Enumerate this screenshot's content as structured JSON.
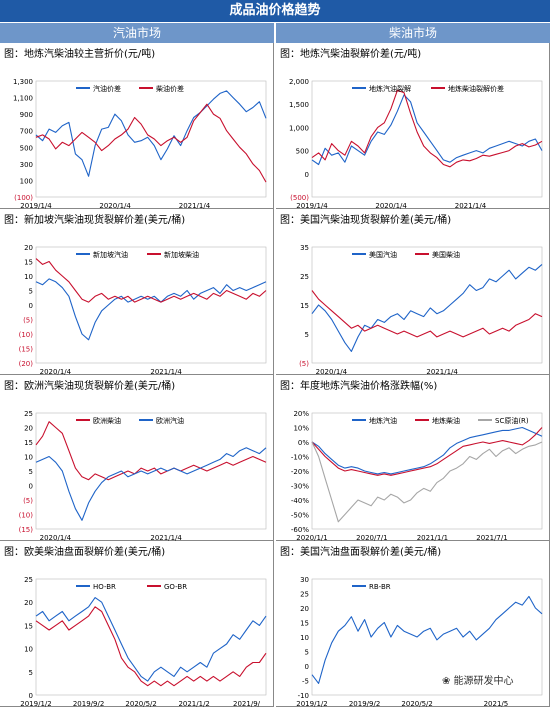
{
  "banner": "成品油价格趋势",
  "col_left": "汽油市场",
  "col_right": "柴油市场",
  "watermark": "能源研发中心",
  "chart_data": [
    {
      "type": "line",
      "title": "图：地炼汽柴油较主营折价(元/吨)",
      "y_ticks": [
        "1,300",
        "1,100",
        "900",
        "700",
        "500",
        "300",
        "100",
        "(100)"
      ],
      "ylim": [
        -100,
        1300
      ],
      "x_ticks": [
        "2019/1/4",
        "2020/1/4",
        "2021/1/4"
      ],
      "x_domain": [
        "2019-01-04",
        "2021-11-30"
      ],
      "series": [
        {
          "name": "汽油价差",
          "color": "#1f64c8",
          "values": [
            650,
            580,
            720,
            680,
            760,
            800,
            420,
            350,
            150,
            520,
            720,
            740,
            900,
            820,
            650,
            560,
            580,
            620,
            520,
            350,
            480,
            640,
            520,
            700,
            860,
            920,
            1000,
            1080,
            1150,
            1180,
            1100,
            1020,
            930,
            980,
            1050,
            850
          ]
        },
        {
          "name": "柴油价差",
          "color": "#c8102e",
          "values": [
            620,
            650,
            600,
            480,
            560,
            520,
            600,
            680,
            620,
            560,
            460,
            520,
            600,
            650,
            720,
            860,
            780,
            650,
            600,
            520,
            580,
            620,
            560,
            620,
            820,
            920,
            1020,
            900,
            850,
            700,
            600,
            500,
            420,
            300,
            220,
            80
          ]
        }
      ]
    },
    {
      "type": "line",
      "title": "图：地炼汽柴油裂解价差(元/吨)",
      "y_ticks": [
        "2,000",
        "1,500",
        "1,000",
        "500",
        "0",
        "(500)"
      ],
      "ylim": [
        -500,
        2000
      ],
      "x_ticks": [
        "2019/1/4",
        "2020/1/4",
        "2021/1/4"
      ],
      "x_domain": [
        "2019-01-04",
        "2021-11-30"
      ],
      "series": [
        {
          "name": "地炼汽油裂解",
          "color": "#1f64c8",
          "values": [
            300,
            200,
            550,
            400,
            450,
            250,
            600,
            500,
            400,
            700,
            900,
            850,
            1050,
            1350,
            1700,
            1550,
            1100,
            900,
            700,
            500,
            300,
            250,
            350,
            400,
            450,
            500,
            450,
            550,
            600,
            650,
            700,
            650,
            600,
            700,
            750,
            500
          ]
        },
        {
          "name": "地炼柴油裂解价差",
          "color": "#c8102e",
          "values": [
            350,
            450,
            300,
            650,
            500,
            400,
            700,
            600,
            450,
            800,
            1000,
            1100,
            1400,
            1800,
            1750,
            1300,
            900,
            600,
            450,
            350,
            200,
            150,
            250,
            300,
            280,
            330,
            400,
            380,
            420,
            460,
            500,
            600,
            650,
            580,
            620,
            700
          ]
        }
      ]
    },
    {
      "type": "line",
      "title": "图：新加坡汽柴油现货裂解价差(美元/桶)",
      "y_ticks": [
        "20",
        "15",
        "10",
        "5",
        "0",
        "(5)",
        "(10)",
        "(15)",
        "(20)"
      ],
      "ylim": [
        -20,
        20
      ],
      "x_ticks": [
        "2020/1/4",
        "2021/1/4"
      ],
      "x_domain": [
        "2019-11-01",
        "2021-11-30"
      ],
      "series": [
        {
          "name": "新加坡汽油",
          "color": "#1f64c8",
          "values": [
            8,
            7,
            9,
            8,
            6,
            3,
            -4,
            -10,
            -12,
            -6,
            -2,
            0,
            2,
            3,
            1,
            2,
            3,
            2,
            3,
            1,
            3,
            4,
            3,
            5,
            2,
            4,
            5,
            6,
            4,
            7,
            5,
            6,
            5,
            6,
            7,
            8
          ]
        },
        {
          "name": "新加坡柴油",
          "color": "#c8102e",
          "values": [
            16,
            14,
            15,
            12,
            10,
            8,
            5,
            2,
            1,
            3,
            4,
            2,
            3,
            2,
            3,
            1,
            2,
            3,
            2,
            1,
            2,
            3,
            2,
            3,
            4,
            3,
            2,
            4,
            3,
            5,
            4,
            3,
            2,
            4,
            3,
            5
          ]
        }
      ]
    },
    {
      "type": "line",
      "title": "图：美国汽柴油现货裂解价差(美元/桶)",
      "y_ticks": [
        "35",
        "25",
        "15",
        "5",
        "(5)"
      ],
      "ylim": [
        -5,
        35
      ],
      "x_ticks": [
        "2020/1/4",
        "2021/1/4"
      ],
      "x_domain": [
        "2019-11-01",
        "2021-11-30"
      ],
      "series": [
        {
          "name": "美国汽油",
          "color": "#1f64c8",
          "values": [
            12,
            15,
            13,
            10,
            6,
            2,
            -1,
            4,
            8,
            7,
            10,
            9,
            11,
            12,
            10,
            13,
            12,
            11,
            14,
            12,
            13,
            15,
            17,
            19,
            22,
            20,
            21,
            24,
            23,
            25,
            27,
            24,
            26,
            28,
            27,
            29
          ]
        },
        {
          "name": "美国柴油",
          "color": "#c8102e",
          "values": [
            20,
            17,
            15,
            13,
            11,
            9,
            7,
            8,
            6,
            7,
            8,
            7,
            6,
            5,
            6,
            5,
            4,
            5,
            6,
            4,
            5,
            6,
            5,
            4,
            5,
            6,
            7,
            5,
            6,
            7,
            6,
            8,
            9,
            10,
            12,
            11
          ]
        }
      ]
    },
    {
      "type": "line",
      "title": "图：欧洲汽柴油现货裂解价差(美元/桶)",
      "y_ticks": [
        "25",
        "20",
        "15",
        "10",
        "5",
        "0",
        "(5)",
        "(10)",
        "(15)"
      ],
      "ylim": [
        -15,
        25
      ],
      "x_ticks": [
        "2020/1/4",
        "2021/1/4"
      ],
      "x_domain": [
        "2019-11-01",
        "2021-11-30"
      ],
      "series": [
        {
          "name": "欧洲柴油",
          "color": "#c8102e",
          "values": [
            14,
            17,
            22,
            20,
            18,
            12,
            6,
            3,
            2,
            4,
            3,
            2,
            3,
            4,
            5,
            4,
            6,
            5,
            6,
            4,
            5,
            6,
            5,
            6,
            7,
            6,
            5,
            6,
            7,
            8,
            7,
            8,
            9,
            10,
            9,
            8
          ]
        },
        {
          "name": "欧洲汽油",
          "color": "#1f64c8",
          "values": [
            8,
            9,
            10,
            8,
            5,
            -2,
            -8,
            -12,
            -6,
            -2,
            1,
            3,
            4,
            5,
            3,
            4,
            5,
            4,
            5,
            6,
            5,
            6,
            5,
            4,
            5,
            6,
            7,
            8,
            9,
            11,
            10,
            12,
            13,
            12,
            11,
            13
          ]
        }
      ]
    },
    {
      "type": "line",
      "title": "图：年度地炼汽柴油价格涨跌幅(%)",
      "y_ticks": [
        "20%",
        "10%",
        "0%",
        "-10%",
        "-20%",
        "-30%",
        "-40%",
        "-50%",
        "-60%"
      ],
      "ylim": [
        -60,
        20
      ],
      "x_ticks": [
        "2020/1/1",
        "2020/7/1",
        "2021/1/1",
        "2021/7/1"
      ],
      "x_domain": [
        "2020-01-01",
        "2021-11-30"
      ],
      "series": [
        {
          "name": "地炼汽油",
          "color": "#1f64c8",
          "values": [
            0,
            -3,
            -8,
            -12,
            -16,
            -18,
            -17,
            -18,
            -20,
            -21,
            -22,
            -21,
            -22,
            -21,
            -20,
            -19,
            -18,
            -17,
            -15,
            -12,
            -9,
            -4,
            -1,
            1,
            3,
            4,
            5,
            6,
            7,
            8,
            8,
            9,
            10,
            8,
            6,
            4
          ]
        },
        {
          "name": "地炼柴油",
          "color": "#c8102e",
          "values": [
            0,
            -5,
            -10,
            -14,
            -18,
            -20,
            -19,
            -20,
            -21,
            -22,
            -23,
            -22,
            -23,
            -22,
            -21,
            -20,
            -19,
            -18,
            -17,
            -15,
            -12,
            -9,
            -6,
            -3,
            -2,
            -1,
            0,
            -1,
            0,
            1,
            0,
            -1,
            -2,
            1,
            5,
            10
          ]
        },
        {
          "name": "SC原油(R)",
          "color": "#a6a6a6",
          "values": [
            0,
            -10,
            -25,
            -40,
            -55,
            -50,
            -45,
            -40,
            -42,
            -44,
            -38,
            -40,
            -36,
            -38,
            -42,
            -40,
            -35,
            -32,
            -34,
            -28,
            -25,
            -20,
            -18,
            -15,
            -10,
            -12,
            -8,
            -5,
            -10,
            -6,
            -4,
            -8,
            -5,
            -3,
            -2,
            0
          ]
        }
      ]
    },
    {
      "type": "line",
      "title": "图：欧美柴油盘面裂解价差(美元/桶)",
      "y_ticks": [
        "25",
        "20",
        "15",
        "10",
        "5",
        "0"
      ],
      "ylim": [
        0,
        25
      ],
      "x_ticks": [
        "2019/1/2",
        "2019/9/2",
        "2020/5/2",
        "2021/1/2",
        "2021/9/"
      ],
      "x_domain": [
        "2019-01-02",
        "2021-11-30"
      ],
      "series": [
        {
          "name": "HO-BR",
          "color": "#1f64c8",
          "values": [
            17,
            18,
            16,
            17,
            18,
            16,
            17,
            18,
            19,
            21,
            20,
            17,
            14,
            11,
            8,
            6,
            4,
            3,
            5,
            6,
            5,
            4,
            6,
            5,
            6,
            7,
            6,
            9,
            10,
            11,
            13,
            12,
            14,
            16,
            15,
            17
          ]
        },
        {
          "name": "GO-BR",
          "color": "#c8102e",
          "values": [
            16,
            15,
            14,
            15,
            16,
            14,
            15,
            16,
            17,
            19,
            18,
            15,
            12,
            8,
            6,
            5,
            3,
            2,
            3,
            2,
            3,
            2,
            3,
            4,
            3,
            4,
            3,
            4,
            3,
            4,
            5,
            4,
            6,
            7,
            7,
            9
          ]
        }
      ]
    },
    {
      "type": "line",
      "title": "图：美国汽油盘面裂解价差(美元/桶)",
      "y_ticks": [
        "30",
        "25",
        "20",
        "15",
        "10",
        "5",
        "0",
        "-5",
        "-10"
      ],
      "ylim": [
        -10,
        30
      ],
      "x_ticks": [
        "2019/1/2",
        "2019/9/2",
        "2020/5/2",
        "2021/5"
      ],
      "x_domain": [
        "2019-01-02",
        "2021-11-30"
      ],
      "series": [
        {
          "name": "RB-BR",
          "color": "#1f64c8",
          "values": [
            -3,
            -6,
            2,
            8,
            12,
            14,
            17,
            12,
            16,
            10,
            13,
            15,
            10,
            14,
            12,
            11,
            10,
            12,
            13,
            9,
            11,
            12,
            13,
            10,
            12,
            9,
            11,
            13,
            16,
            18,
            20,
            22,
            21,
            24,
            20,
            18
          ]
        }
      ]
    }
  ]
}
